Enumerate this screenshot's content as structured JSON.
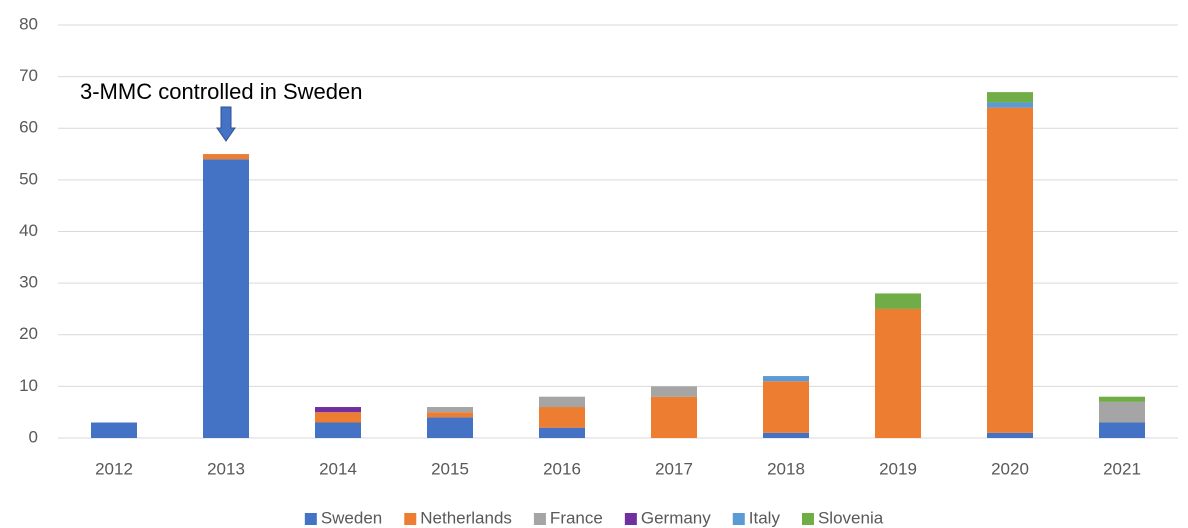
{
  "chart_data": {
    "type": "stacked_bar",
    "annotation": "3-MMC controlled in Sweden",
    "categories": [
      "2012",
      "2013",
      "2014",
      "2015",
      "2016",
      "2017",
      "2018",
      "2019",
      "2020",
      "2021"
    ],
    "series": [
      {
        "name": "Sweden",
        "color": "#4472c4",
        "values": [
          3,
          54,
          3,
          4,
          2,
          0,
          1,
          0,
          1,
          3
        ]
      },
      {
        "name": "Netherlands",
        "color": "#ed7d31",
        "values": [
          0,
          1,
          2,
          1,
          4,
          8,
          10,
          25,
          63,
          0
        ]
      },
      {
        "name": "France",
        "color": "#a5a5a5",
        "values": [
          0,
          0,
          0,
          1,
          2,
          2,
          0,
          0,
          0,
          4
        ]
      },
      {
        "name": "Germany",
        "color": "#7030a0",
        "values": [
          0,
          0,
          1,
          0,
          0,
          0,
          0,
          0,
          0,
          0
        ]
      },
      {
        "name": "Italy",
        "color": "#5b9bd5",
        "values": [
          0,
          0,
          0,
          0,
          0,
          0,
          1,
          0,
          1,
          0
        ]
      },
      {
        "name": "Slovenia",
        "color": "#70ad47",
        "values": [
          0,
          0,
          0,
          0,
          0,
          0,
          0,
          3,
          2,
          1
        ]
      }
    ],
    "ylim": [
      0,
      80
    ],
    "yticks": [
      0,
      10,
      20,
      30,
      40,
      50,
      60,
      70,
      80
    ],
    "grid": true,
    "legend": "bottom"
  }
}
